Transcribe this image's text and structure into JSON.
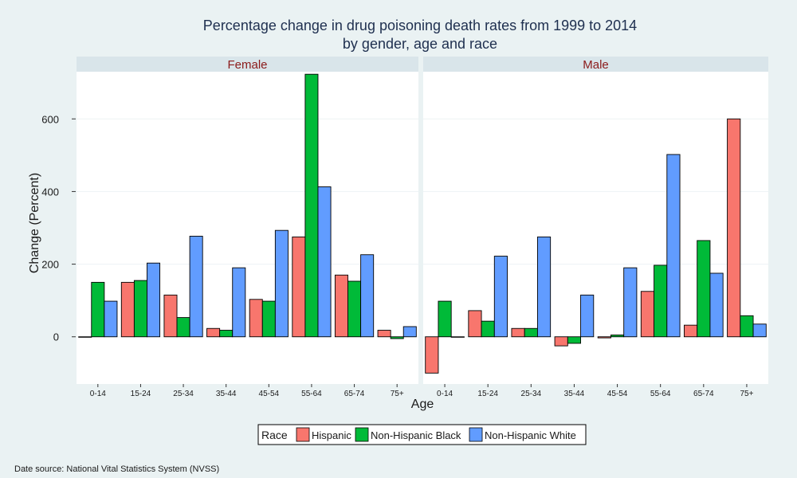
{
  "chart_data": {
    "type": "bar",
    "title_lines": [
      "Percentage change in drug poisoning death rates from 1999 to 2014",
      "by gender, age and race"
    ],
    "xlabel": "Age",
    "ylabel": "Change (Percent)",
    "ylim": [
      -130,
      730
    ],
    "yticks": [
      0,
      200,
      400,
      600
    ],
    "grid": true,
    "legend_position": "bottom",
    "legend_title": "Race",
    "categories": [
      "0-14",
      "15-24",
      "25-34",
      "35-44",
      "45-54",
      "55-64",
      "65-74",
      "75+"
    ],
    "series_colors": {
      "Hispanic": "#f8766d",
      "Non-Hispanic Black": "#00ba38",
      "Non-Hispanic White": "#619cff"
    },
    "panels": [
      {
        "label": "Female",
        "series": [
          {
            "name": "Hispanic",
            "values": [
              0,
              150,
              115,
              23,
              103,
              275,
              170,
              18
            ]
          },
          {
            "name": "Non-Hispanic Black",
            "values": [
              150,
              155,
              53,
              18,
              98,
              723,
              153,
              -5
            ]
          },
          {
            "name": "Non-Hispanic White",
            "values": [
              98,
              203,
              277,
              190,
              293,
              413,
              226,
              28
            ]
          }
        ]
      },
      {
        "label": "Male",
        "series": [
          {
            "name": "Hispanic",
            "values": [
              -100,
              72,
              23,
              -25,
              -3,
              125,
              32,
              600
            ]
          },
          {
            "name": "Non-Hispanic Black",
            "values": [
              98,
              43,
              23,
              -18,
              5,
              197,
              265,
              58
            ]
          },
          {
            "name": "Non-Hispanic White",
            "values": [
              0,
              222,
              275,
              115,
              190,
              502,
              175,
              35
            ]
          }
        ]
      }
    ]
  },
  "footer": {
    "source_note": "Date source: National Vital Statistics System (NVSS)"
  }
}
